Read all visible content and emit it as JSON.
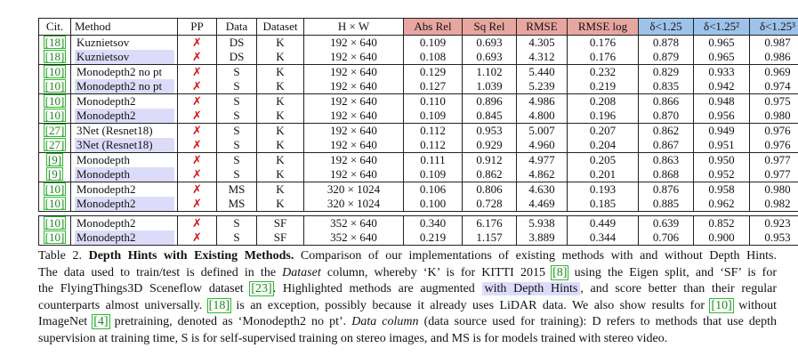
{
  "table": {
    "headers": {
      "cit": "Cit.",
      "method": "Method",
      "pp": "PP",
      "data": "Data",
      "dataset": "Dataset",
      "res": "H × W",
      "abs_rel": "Abs Rel",
      "sq_rel": "Sq Rel",
      "rmse": "RMSE",
      "rmse_log": "RMSE log",
      "d1": "δ<1.25",
      "d2": "δ<1.25²",
      "d3": "δ<1.25³"
    },
    "cross_symbol": "✗",
    "groups": [
      [
        {
          "cite": "[18]",
          "method": "Kuznietsov",
          "hl": false,
          "data": "DS",
          "dataset": "K",
          "res": "192 × 640",
          "abs_rel": "0.109",
          "sq_rel": "0.693",
          "rmse": "4.305",
          "rmse_log": "0.176",
          "d1": "0.878",
          "d2": "0.965",
          "d3": "0.987",
          "bold": [
            "sq_rel",
            "rmse",
            "rmse_log",
            "d2",
            "d3"
          ]
        },
        {
          "cite": "[18]",
          "method": "Kuznietsov",
          "hl": true,
          "data": "DS",
          "dataset": "K",
          "res": "192 × 640",
          "abs_rel": "0.108",
          "sq_rel": "0.693",
          "rmse": "4.312",
          "rmse_log": "0.176",
          "d1": "0.879",
          "d2": "0.965",
          "d3": "0.986",
          "bold": [
            "abs_rel",
            "sq_rel",
            "rmse_log",
            "d1",
            "d2"
          ]
        }
      ],
      [
        {
          "cite": "[10]",
          "method": "Monodepth2 no pt",
          "hl": false,
          "data": "S",
          "dataset": "K",
          "res": "192 × 640",
          "abs_rel": "0.129",
          "sq_rel": "1.102",
          "rmse": "5.440",
          "rmse_log": "0.232",
          "d1": "0.829",
          "d2": "0.933",
          "d3": "0.969",
          "bold": []
        },
        {
          "cite": "[10]",
          "method": "Monodepth2 no pt",
          "hl": true,
          "data": "S",
          "dataset": "K",
          "res": "192 × 640",
          "abs_rel": "0.127",
          "sq_rel": "1.039",
          "rmse": "5.239",
          "rmse_log": "0.219",
          "d1": "0.835",
          "d2": "0.942",
          "d3": "0.974",
          "bold": [
            "abs_rel",
            "sq_rel",
            "rmse",
            "rmse_log",
            "d1",
            "d2",
            "d3"
          ]
        }
      ],
      [
        {
          "cite": "[10]",
          "method": "Monodepth2",
          "hl": false,
          "data": "S",
          "dataset": "K",
          "res": "192 × 640",
          "abs_rel": "0.110",
          "sq_rel": "0.896",
          "rmse": "4.986",
          "rmse_log": "0.208",
          "d1": "0.866",
          "d2": "0.948",
          "d3": "0.975",
          "bold": []
        },
        {
          "cite": "[10]",
          "method": "Monodepth2",
          "hl": true,
          "data": "S",
          "dataset": "K",
          "res": "192 × 640",
          "abs_rel": "0.109",
          "sq_rel": "0.845",
          "rmse": "4.800",
          "rmse_log": "0.196",
          "d1": "0.870",
          "d2": "0.956",
          "d3": "0.980",
          "bold": [
            "abs_rel",
            "sq_rel",
            "rmse",
            "rmse_log",
            "d1",
            "d2",
            "d3"
          ]
        }
      ],
      [
        {
          "cite": "[27]",
          "method": "3Net (Resnet18)",
          "hl": false,
          "data": "S",
          "dataset": "K",
          "res": "192 × 640",
          "abs_rel": "0.112",
          "sq_rel": "0.953",
          "rmse": "5.007",
          "rmse_log": "0.207",
          "d1": "0.862",
          "d2": "0.949",
          "d3": "0.976",
          "bold": [
            "abs_rel",
            "d3"
          ]
        },
        {
          "cite": "[27]",
          "method": "3Net (Resnet18)",
          "hl": true,
          "data": "S",
          "dataset": "K",
          "res": "192 × 640",
          "abs_rel": "0.112",
          "sq_rel": "0.929",
          "rmse": "4.960",
          "rmse_log": "0.204",
          "d1": "0.867",
          "d2": "0.951",
          "d3": "0.976",
          "bold": [
            "abs_rel",
            "sq_rel",
            "rmse",
            "rmse_log",
            "d1",
            "d2",
            "d3"
          ]
        }
      ],
      [
        {
          "cite": "[9]",
          "method": "Monodepth",
          "hl": false,
          "data": "S",
          "dataset": "K",
          "res": "192 × 640",
          "abs_rel": "0.111",
          "sq_rel": "0.912",
          "rmse": "4.977",
          "rmse_log": "0.205",
          "d1": "0.863",
          "d2": "0.950",
          "d3": "0.977",
          "bold": [
            "d3"
          ]
        },
        {
          "cite": "[9]",
          "method": "Monodepth",
          "hl": true,
          "data": "S",
          "dataset": "K",
          "res": "192 × 640",
          "abs_rel": "0.109",
          "sq_rel": "0.862",
          "rmse": "4.862",
          "rmse_log": "0.201",
          "d1": "0.868",
          "d2": "0.952",
          "d3": "0.977",
          "bold": [
            "abs_rel",
            "sq_rel",
            "rmse",
            "rmse_log",
            "d1",
            "d2",
            "d3"
          ]
        }
      ],
      [
        {
          "cite": "[10]",
          "method": "Monodepth2",
          "hl": false,
          "data": "MS",
          "dataset": "K",
          "res": "320 × 1024",
          "abs_rel": "0.106",
          "sq_rel": "0.806",
          "rmse": "4.630",
          "rmse_log": "0.193",
          "d1": "0.876",
          "d2": "0.958",
          "d3": "0.980",
          "bold": []
        },
        {
          "cite": "[10]",
          "method": "Monodepth2",
          "hl": true,
          "data": "MS",
          "dataset": "K",
          "res": "320 × 1024",
          "abs_rel": "0.100",
          "sq_rel": "0.728",
          "rmse": "4.469",
          "rmse_log": "0.185",
          "d1": "0.885",
          "d2": "0.962",
          "d3": "0.982",
          "bold": [
            "abs_rel",
            "sq_rel",
            "rmse",
            "rmse_log",
            "d1",
            "d2",
            "d3"
          ]
        }
      ]
    ],
    "sf_group": [
      {
        "cite": "[10]",
        "method": "Monodepth2",
        "hl": false,
        "data": "S",
        "dataset": "SF",
        "res": "352 × 640",
        "abs_rel": "0.340",
        "sq_rel": "6.176",
        "rmse": "5.938",
        "rmse_log": "0.449",
        "d1": "0.639",
        "d2": "0.852",
        "d3": "0.923",
        "bold": []
      },
      {
        "cite": "[10]",
        "method": "Monodepth2",
        "hl": true,
        "data": "S",
        "dataset": "SF",
        "res": "352 × 640",
        "abs_rel": "0.219",
        "sq_rel": "1.157",
        "rmse": "3.889",
        "rmse_log": "0.344",
        "d1": "0.706",
        "d2": "0.900",
        "d3": "0.953",
        "bold": [
          "abs_rel",
          "sq_rel",
          "rmse",
          "rmse_log",
          "d1",
          "d2",
          "d3"
        ]
      }
    ]
  },
  "caption": {
    "l1_a": "Table 2. ",
    "l1_b": "Depth Hints with Existing Methods.",
    "l1_c": " Comparison of our implementations of existing methods with and without Depth Hints.",
    "l2_a": "The data used to train/test is defined in the ",
    "l2_b": "Dataset",
    "l2_c": " column, whereby ‘K’ is for KITTI 2015 ",
    "l2_cite": "[8]",
    "l2_d": " using the Eigen split, and ‘SF’ is for",
    "l3_a": "the FlyingThings3D Sceneflow dataset ",
    "l3_cite": "[23]",
    "l3_b": ". Highlighted methods are augmented ",
    "l3_hl": "with Depth Hints",
    "l3_c": ", and score better than their regular",
    "l4_a": "counterparts almost universally. ",
    "l4_cite1": "[18]",
    "l4_b": " is an exception, possibly because it already uses LiDAR data. We also show results for ",
    "l4_cite2": "[10]",
    "l4_c": " without",
    "l5_a": "ImageNet ",
    "l5_cite": "[4]",
    "l5_b": " pretraining, denoted as ‘Monodepth2 no pt’. ",
    "l5_c": "Data column",
    "l5_d": " (data source used for training): D refers to methods that use depth",
    "l6": "supervision at training time, S is for self-supervised training on stereo images, and MS is for models trained with stereo video."
  }
}
